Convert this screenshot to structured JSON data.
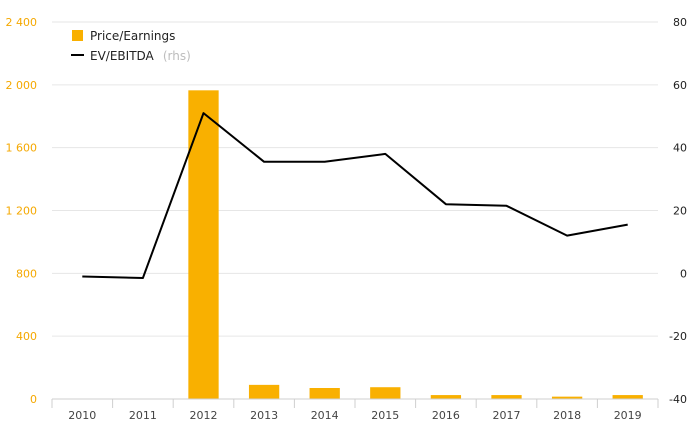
{
  "chart_data": {
    "type": "bar",
    "categories": [
      "2010",
      "2011",
      "2012",
      "2013",
      "2014",
      "2015",
      "2016",
      "2017",
      "2018",
      "2019"
    ],
    "series": [
      {
        "name": "Price/Earnings",
        "type": "bar",
        "axis": "left",
        "color": "#f9b000",
        "values": [
          null,
          null,
          1965,
          90,
          70,
          75,
          25,
          25,
          15,
          25
        ]
      },
      {
        "name": "EV/EBITDA",
        "type": "line",
        "axis": "right",
        "color": "#000000",
        "values": [
          -1,
          -1.5,
          51,
          35.5,
          35.5,
          38,
          22,
          21.5,
          12,
          15.5
        ]
      }
    ],
    "y_left": {
      "ylim": [
        0,
        2400
      ],
      "tick_values": [
        0,
        400,
        800,
        1200,
        1600,
        2000,
        2400
      ],
      "tick_labels": [
        "0",
        "400",
        "800",
        "1 200",
        "1 600",
        "2 000",
        "2 400"
      ]
    },
    "y_right": {
      "ylim": [
        -40,
        80
      ],
      "tick_values": [
        -40,
        -20,
        0,
        20,
        40,
        60,
        80
      ],
      "tick_labels": [
        "-40",
        "-20",
        "0",
        "20",
        "40",
        "60",
        "80"
      ]
    },
    "legend": {
      "position": "top-left",
      "items": [
        {
          "label": "Price/Earnings",
          "suffix": "",
          "marker": "square"
        },
        {
          "label": "EV/EBITDA",
          "suffix": "(rhs)",
          "marker": "line"
        }
      ]
    },
    "grid": true
  }
}
